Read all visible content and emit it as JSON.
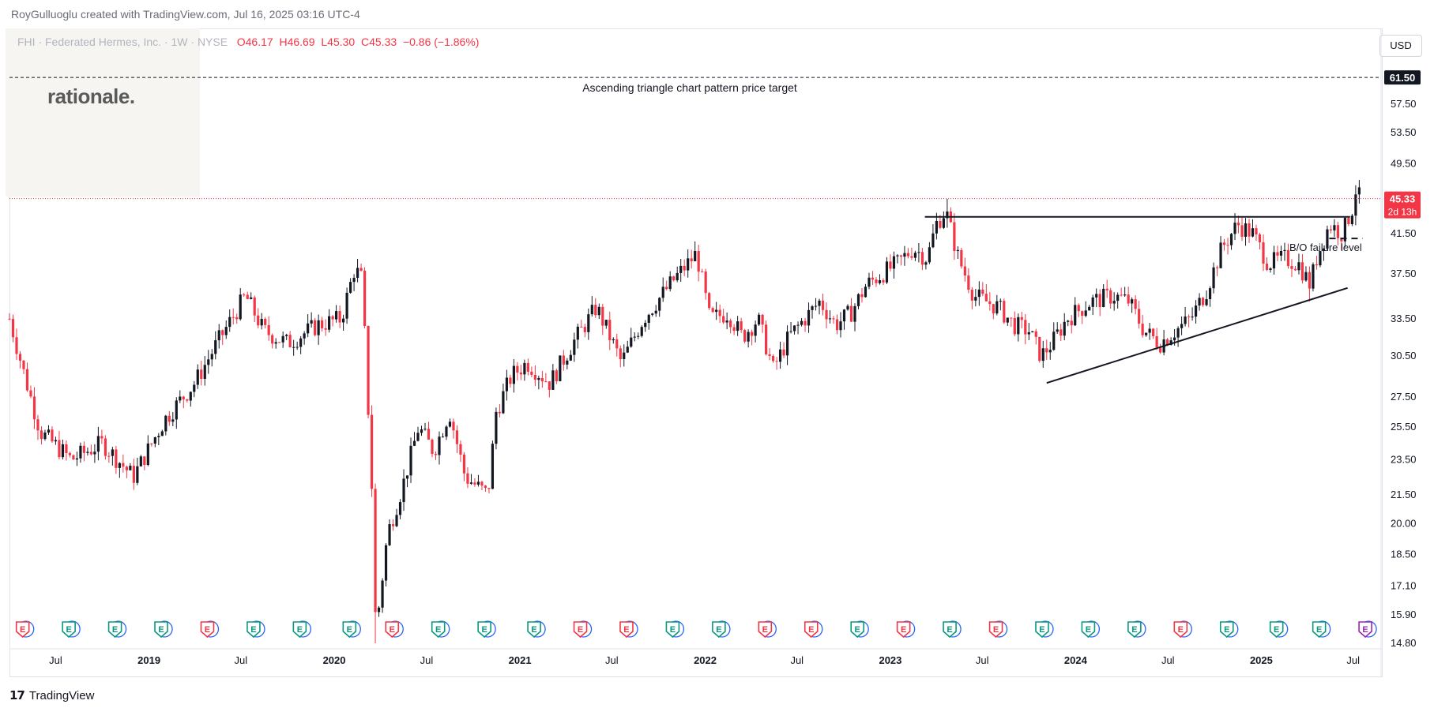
{
  "credit": "RoyGulluoglu created with TradingView.com, Jul 16, 2025 03:16 UTC-4",
  "logo_text": "rationale.",
  "legend": {
    "symbol": "FHI · Federated Hermes, Inc. · 1W · NYSE",
    "open": "O46.17",
    "high": "H46.69",
    "low": "L45.30",
    "close": "C45.33",
    "change": "−0.86 (−1.86%)"
  },
  "currency": "USD",
  "footer_brand": "TradingView",
  "colors": {
    "up": "#131722",
    "down": "#f23645",
    "earnings_green": "#089981",
    "earnings_red": "#f23645",
    "earnings_purple": "#9c27b0"
  },
  "chart_data": {
    "type": "candlestick",
    "title": "FHI · Federated Hermes, Inc. · 1W · NYSE",
    "y_scale": "log",
    "ylim": [
      14.8,
      63.5
    ],
    "y_ticks": [
      "14.80",
      "15.90",
      "17.10",
      "18.50",
      "20.00",
      "21.50",
      "23.50",
      "25.50",
      "27.50",
      "30.50",
      "33.50",
      "37.50",
      "41.50",
      "45.50",
      "49.50",
      "53.50",
      "57.50",
      "61.50"
    ],
    "x_ticks": [
      "Jul",
      "2019",
      "Jul",
      "2020",
      "Jul",
      "2021",
      "Jul",
      "2022",
      "Jul",
      "2023",
      "Jul",
      "2024",
      "Jul",
      "2025",
      "Jul"
    ],
    "x_tick_dates": [
      "2018-07-01",
      "2019-01-01",
      "2019-07-01",
      "2020-01-01",
      "2020-07-01",
      "2021-01-01",
      "2021-07-01",
      "2022-01-01",
      "2022-07-01",
      "2023-01-01",
      "2023-07-01",
      "2024-01-01",
      "2024-07-01",
      "2025-01-01",
      "2025-07-01"
    ],
    "last_price": {
      "label": "45.33",
      "countdown": "2d 13h"
    },
    "target_price": {
      "label": "61.50",
      "annotation": "Ascending triangle chart pattern price target"
    },
    "price_path": [
      [
        "2018-04-01",
        33.5
      ],
      [
        "2018-05-01",
        29.0
      ],
      [
        "2018-06-01",
        25.2
      ],
      [
        "2018-08-01",
        23.5
      ],
      [
        "2018-10-01",
        24.5
      ],
      [
        "2018-12-01",
        22.5
      ],
      [
        "2019-02-01",
        26.0
      ],
      [
        "2019-04-01",
        28.5
      ],
      [
        "2019-05-15",
        31.5
      ],
      [
        "2019-07-10",
        35.5
      ],
      [
        "2019-08-15",
        32.5
      ],
      [
        "2019-10-01",
        31.5
      ],
      [
        "2019-12-01",
        33.0
      ],
      [
        "2020-01-15",
        33.5
      ],
      [
        "2020-02-10",
        38.0
      ],
      [
        "2020-02-25",
        37.0
      ],
      [
        "2020-03-15",
        22.0
      ],
      [
        "2020-03-23",
        15.2
      ],
      [
        "2020-04-15",
        19.5
      ],
      [
        "2020-05-15",
        22.0
      ],
      [
        "2020-06-15",
        25.5
      ],
      [
        "2020-07-15",
        24.0
      ],
      [
        "2020-08-15",
        26.5
      ],
      [
        "2020-09-15",
        22.5
      ],
      [
        "2020-10-30",
        21.5
      ],
      [
        "2020-11-15",
        26.5
      ],
      [
        "2020-12-15",
        29.0
      ],
      [
        "2021-01-15",
        30.0
      ],
      [
        "2021-03-01",
        28.5
      ],
      [
        "2021-04-15",
        31.5
      ],
      [
        "2021-06-01",
        34.5
      ],
      [
        "2021-07-20",
        30.0
      ],
      [
        "2021-09-01",
        33.5
      ],
      [
        "2021-11-01",
        37.0
      ],
      [
        "2021-12-15",
        39.5
      ],
      [
        "2022-01-10",
        33.5
      ],
      [
        "2022-02-15",
        34.0
      ],
      [
        "2022-03-15",
        32.0
      ],
      [
        "2022-04-15",
        33.5
      ],
      [
        "2022-05-15",
        29.5
      ],
      [
        "2022-06-15",
        32.0
      ],
      [
        "2022-08-15",
        35.0
      ],
      [
        "2022-09-15",
        33.0
      ],
      [
        "2022-10-15",
        34.0
      ],
      [
        "2022-11-15",
        36.5
      ],
      [
        "2022-12-15",
        37.5
      ],
      [
        "2023-01-15",
        38.5
      ],
      [
        "2023-02-15",
        40.0
      ],
      [
        "2023-03-15",
        39.0
      ],
      [
        "2023-04-01",
        42.5
      ],
      [
        "2023-04-20",
        44.0
      ],
      [
        "2023-05-15",
        39.0
      ],
      [
        "2023-06-15",
        35.5
      ],
      [
        "2023-08-01",
        34.5
      ],
      [
        "2023-09-01",
        33.0
      ],
      [
        "2023-10-01",
        32.5
      ],
      [
        "2023-10-25",
        30.5
      ],
      [
        "2023-11-15",
        31.5
      ],
      [
        "2023-12-15",
        33.5
      ],
      [
        "2024-02-01",
        35.0
      ],
      [
        "2024-03-15",
        35.5
      ],
      [
        "2024-04-15",
        35.0
      ],
      [
        "2024-05-15",
        32.5
      ],
      [
        "2024-06-15",
        31.5
      ],
      [
        "2024-07-15",
        32.5
      ],
      [
        "2024-08-15",
        33.5
      ],
      [
        "2024-09-15",
        36.0
      ],
      [
        "2024-10-15",
        40.0
      ],
      [
        "2024-11-15",
        42.5
      ],
      [
        "2024-12-15",
        41.5
      ],
      [
        "2025-01-15",
        38.5
      ],
      [
        "2025-02-15",
        39.0
      ],
      [
        "2025-03-15",
        38.5
      ],
      [
        "2025-04-07",
        36.5
      ],
      [
        "2025-04-20",
        39.0
      ],
      [
        "2025-05-15",
        42.5
      ],
      [
        "2025-06-10",
        41.5
      ],
      [
        "2025-07-01",
        44.5
      ],
      [
        "2025-07-07",
        46.7
      ],
      [
        "2025-07-14",
        45.33
      ]
    ],
    "spikes": [
      {
        "date": "2020-02-18",
        "high": 38.3
      },
      {
        "date": "2020-03-23",
        "low": 14.8
      },
      {
        "date": "2023-04-20",
        "high": 45.3
      },
      {
        "date": "2023-10-25",
        "low": 30.0
      },
      {
        "date": "2025-04-07",
        "low": 35.0
      },
      {
        "date": "2025-07-07",
        "high": 46.69
      }
    ],
    "lines": [
      {
        "name": "resistance",
        "from": [
          "2023-03-10",
          43.3
        ],
        "to": [
          "2025-06-25",
          43.3
        ],
        "style": "solid"
      },
      {
        "name": "ascending-support",
        "from": [
          "2023-11-05",
          28.5
        ],
        "to": [
          "2025-06-20",
          36.2
        ],
        "style": "solid"
      },
      {
        "name": "bo-failure-level",
        "from": [
          "2025-05-15",
          41.0
        ],
        "to": [
          "2025-07-20",
          41.0
        ],
        "style": "dashed"
      },
      {
        "name": "price-target",
        "from": [
          "2018-04-01",
          61.5
        ],
        "to": [
          "2025-08-25",
          61.5
        ],
        "style": "dashed"
      }
    ],
    "bo_failure_label": "B/O failure level",
    "earnings_marker_label": "E",
    "earnings": [
      {
        "date": "2018-04-27",
        "color": "red"
      },
      {
        "date": "2018-07-27",
        "color": "green"
      },
      {
        "date": "2018-10-26",
        "color": "green"
      },
      {
        "date": "2019-01-25",
        "color": "green"
      },
      {
        "date": "2019-04-26",
        "color": "red"
      },
      {
        "date": "2019-07-26",
        "color": "green"
      },
      {
        "date": "2019-10-25",
        "color": "green"
      },
      {
        "date": "2020-01-31",
        "color": "green"
      },
      {
        "date": "2020-04-24",
        "color": "red"
      },
      {
        "date": "2020-07-24",
        "color": "green"
      },
      {
        "date": "2020-10-23",
        "color": "green"
      },
      {
        "date": "2021-01-29",
        "color": "green"
      },
      {
        "date": "2021-04-30",
        "color": "red"
      },
      {
        "date": "2021-07-30",
        "color": "red"
      },
      {
        "date": "2021-10-29",
        "color": "green"
      },
      {
        "date": "2022-01-28",
        "color": "green"
      },
      {
        "date": "2022-04-29",
        "color": "red"
      },
      {
        "date": "2022-07-29",
        "color": "red"
      },
      {
        "date": "2022-10-28",
        "color": "green"
      },
      {
        "date": "2023-01-27",
        "color": "red"
      },
      {
        "date": "2023-04-28",
        "color": "green"
      },
      {
        "date": "2023-07-28",
        "color": "red"
      },
      {
        "date": "2023-10-27",
        "color": "green"
      },
      {
        "date": "2024-01-26",
        "color": "green"
      },
      {
        "date": "2024-04-26",
        "color": "green"
      },
      {
        "date": "2024-07-26",
        "color": "red"
      },
      {
        "date": "2024-10-25",
        "color": "green"
      },
      {
        "date": "2025-01-31",
        "color": "green"
      },
      {
        "date": "2025-04-25",
        "color": "green"
      },
      {
        "date": "2025-07-25",
        "color": "purple"
      }
    ]
  }
}
